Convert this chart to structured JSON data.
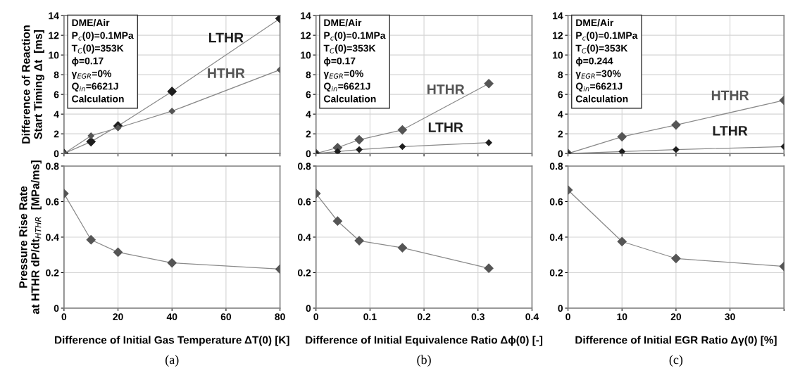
{
  "chart_data": [
    {
      "type": "line",
      "ylabel": "Difference of Reaction\nStart Timing Δt  [ms]",
      "annotations": [
        "DME/Air\nP$_{c}$(0)=0.1MPa\nT$_{C}$(0)=353K\nϕ=0.17\nγ$_{EGR}$=0%\nQ$_{in}$=6621J\nCalculation"
      ],
      "xlim": [
        0,
        80
      ],
      "xticks": [
        0,
        20,
        40,
        60,
        80
      ],
      "ylim": [
        0,
        14
      ],
      "yticks": [
        0,
        2,
        4,
        6,
        8,
        10,
        12,
        14
      ],
      "tick_labels": "y",
      "grid": true,
      "legend": false,
      "marker": "diamond",
      "line_style": "solid",
      "series": [
        {
          "name": "LTHR",
          "color": "#1e1e1e",
          "x": [
            0,
            10,
            20,
            40,
            80
          ],
          "values": [
            0,
            1.2,
            2.8,
            6.3,
            13.7
          ]
        },
        {
          "name": "HTHR",
          "color": "#555555",
          "x": [
            0,
            10,
            20,
            40,
            80
          ],
          "values": [
            0,
            1.8,
            2.6,
            4.3,
            8.5
          ]
        }
      ]
    },
    {
      "type": "line",
      "annotations": [
        "DME/Air\nP$_{c}$(0)=0.1MPa\nT$_{C}$(0)=353K\nϕ=0.17\nγ$_{EGR}$=0%\nQ$_{in}$=6621J\nCalculation"
      ],
      "xlim": [
        0,
        0.4
      ],
      "xticks": [
        0,
        0.1,
        0.2,
        0.3,
        0.4
      ],
      "ylim": [
        0,
        14
      ],
      "yticks": [
        0,
        2,
        4,
        6,
        8,
        10,
        12,
        14
      ],
      "tick_labels": "y",
      "grid": true,
      "legend": false,
      "marker": "diamond",
      "line_style": "solid",
      "series": [
        {
          "name": "HTHR",
          "color": "#555555",
          "x": [
            0,
            0.04,
            0.08,
            0.16,
            0.32
          ],
          "values": [
            0,
            0.6,
            1.4,
            2.4,
            7.1
          ]
        },
        {
          "name": "LTHR",
          "color": "#1e1e1e",
          "x": [
            0,
            0.04,
            0.08,
            0.16,
            0.32
          ],
          "values": [
            0,
            0.2,
            0.4,
            0.7,
            1.1
          ]
        }
      ]
    },
    {
      "type": "line",
      "annotations": [
        "DME/Air\nP$_{c}$(0)=0.1MPa\nT$_{C}$(0)=353K\nϕ=0.244\nγ$_{EGR}$=30%\nQ$_{in}$=6621J\nCalculation"
      ],
      "xlim": [
        0,
        40
      ],
      "xticks": [
        0,
        10,
        20,
        30,
        {
          "value": 40,
          "label": null
        }
      ],
      "ylim": [
        0,
        14
      ],
      "yticks": [
        0,
        2,
        4,
        6,
        8,
        10,
        12,
        14
      ],
      "tick_labels": "y",
      "grid": true,
      "legend": false,
      "marker": "diamond",
      "line_style": "solid",
      "series": [
        {
          "name": "HTHR",
          "color": "#555555",
          "x": [
            0,
            10,
            20,
            40
          ],
          "values": [
            0,
            1.7,
            2.9,
            5.4
          ]
        },
        {
          "name": "LTHR",
          "color": "#1e1e1e",
          "x": [
            0,
            10,
            20,
            40
          ],
          "values": [
            0,
            0.2,
            0.4,
            0.7
          ]
        }
      ]
    },
    {
      "type": "line",
      "ylabel": "Pressure Rise Rate\nat HTHR dP/dt$_{HTHR}$  [MPa/ms]",
      "xlabel": "Difference of Initial Gas Temperature ΔT(0) [K]",
      "annotations": [
        "(a)"
      ],
      "xlim": [
        0,
        80
      ],
      "xticks": [
        0,
        20,
        40,
        60,
        80
      ],
      "ylim": [
        0,
        0.8
      ],
      "yticks": [
        0,
        0.2,
        0.4,
        0.6,
        0.8
      ],
      "grid": true,
      "legend": false,
      "marker": "diamond",
      "line_style": "solid",
      "series": [
        {
          "color": "#555555",
          "x": [
            0,
            10,
            20,
            40,
            80
          ],
          "values": [
            0.645,
            0.385,
            0.315,
            0.255,
            0.22
          ]
        }
      ]
    },
    {
      "type": "line",
      "xlabel": "Difference of Initial Equivalence Ratio Δϕ(0) [-]",
      "annotations": [
        "(b)"
      ],
      "xlim": [
        0,
        0.4
      ],
      "xticks": [
        0,
        0.1,
        0.2,
        0.3,
        0.4
      ],
      "ylim": [
        0,
        0.8
      ],
      "yticks": [
        0,
        0.2,
        0.4,
        0.6,
        0.8
      ],
      "grid": true,
      "legend": false,
      "marker": "diamond",
      "line_style": "solid",
      "series": [
        {
          "color": "#555555",
          "x": [
            0,
            0.04,
            0.08,
            0.16,
            0.32
          ],
          "values": [
            0.645,
            0.49,
            0.38,
            0.34,
            0.225
          ]
        }
      ]
    },
    {
      "type": "line",
      "xlabel": "Difference of Initial EGR Ratio Δγ(0) [%]",
      "annotations": [
        "(c)"
      ],
      "xlim": [
        0,
        40
      ],
      "xticks": [
        0,
        10,
        20,
        30,
        {
          "value": 40,
          "label": null
        }
      ],
      "ylim": [
        0,
        0.8
      ],
      "yticks": [
        0,
        0.2,
        0.4,
        0.6,
        0.8
      ],
      "grid": true,
      "legend": false,
      "marker": "diamond",
      "line_style": "solid",
      "series": [
        {
          "color": "#555555",
          "x": [
            0,
            10,
            20,
            40
          ],
          "values": [
            0.665,
            0.375,
            0.28,
            0.235
          ]
        }
      ]
    }
  ]
}
